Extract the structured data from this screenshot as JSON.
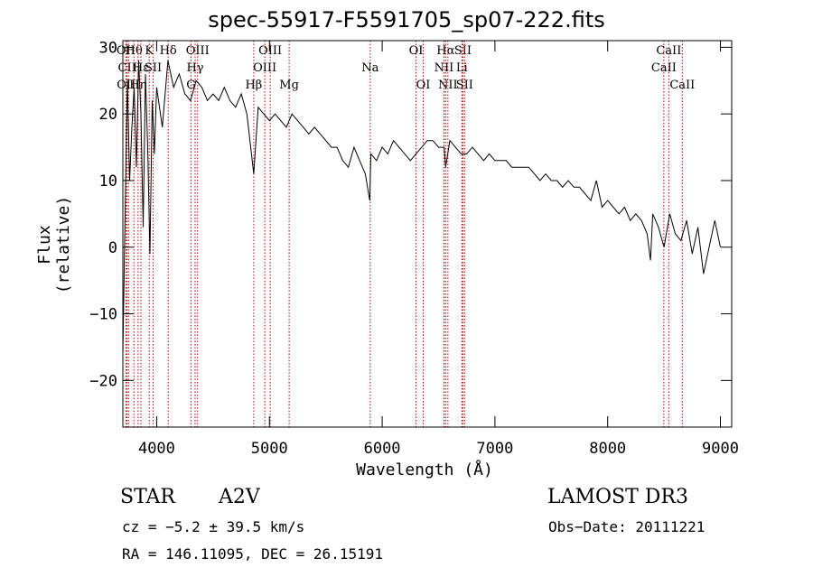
{
  "chart_data": {
    "type": "line",
    "title": "spec-55917-F5591705_sp07-222.fits",
    "xlabel": "Wavelength (Å)",
    "ylabel": "Flux (relative)",
    "xlim": [
      3700,
      9100
    ],
    "ylim": [
      -27,
      31
    ],
    "xticks": [
      4000,
      5000,
      6000,
      7000,
      8000,
      9000
    ],
    "yticks": [
      -20,
      -10,
      0,
      10,
      20,
      30
    ],
    "series": [
      {
        "name": "spectrum",
        "x": [
          3700,
          3720,
          3740,
          3760,
          3780,
          3800,
          3820,
          3840,
          3860,
          3880,
          3900,
          3920,
          3940,
          3960,
          3980,
          4000,
          4050,
          4100,
          4150,
          4200,
          4250,
          4300,
          4350,
          4400,
          4450,
          4500,
          4550,
          4600,
          4650,
          4700,
          4750,
          4800,
          4861,
          4900,
          4950,
          5000,
          5050,
          5100,
          5150,
          5200,
          5250,
          5300,
          5350,
          5400,
          5450,
          5500,
          5550,
          5600,
          5650,
          5700,
          5750,
          5800,
          5850,
          5890,
          5900,
          5950,
          6000,
          6050,
          6100,
          6150,
          6200,
          6250,
          6300,
          6350,
          6400,
          6450,
          6500,
          6550,
          6563,
          6600,
          6650,
          6700,
          6750,
          6800,
          6850,
          6900,
          6950,
          7000,
          7050,
          7100,
          7150,
          7200,
          7250,
          7300,
          7350,
          7400,
          7450,
          7500,
          7550,
          7600,
          7650,
          7700,
          7750,
          7800,
          7850,
          7900,
          7950,
          8000,
          8050,
          8100,
          8150,
          8200,
          8250,
          8300,
          8350,
          8380,
          8400,
          8450,
          8500,
          8550,
          8600,
          8650,
          8700,
          8750,
          8800,
          8850,
          8900,
          8950,
          9000
        ],
        "y": [
          -16,
          5,
          25,
          10,
          18,
          24,
          12,
          28,
          20,
          3,
          26,
          15,
          -1,
          22,
          14,
          24,
          18,
          28,
          24,
          26,
          23,
          22,
          25,
          24,
          22,
          23,
          22,
          24,
          22,
          21,
          23,
          20,
          11,
          21,
          20,
          19,
          20,
          19,
          18,
          20,
          19,
          18,
          17,
          18,
          17,
          16,
          15,
          15,
          13,
          12,
          15,
          13,
          11,
          7,
          14,
          13,
          15,
          14,
          16,
          15,
          14,
          13,
          14,
          15,
          16,
          16,
          15,
          15,
          12,
          16,
          15,
          14,
          14,
          15,
          14,
          13,
          14,
          13,
          13,
          13,
          12,
          12,
          12,
          12,
          11,
          10,
          11,
          10,
          10,
          9,
          10,
          9,
          9,
          8,
          7,
          10,
          6,
          7,
          6,
          5,
          6,
          4,
          5,
          4,
          2,
          -2,
          5,
          3,
          0,
          5,
          2,
          1,
          4,
          -1,
          3,
          -4,
          0,
          4,
          0
        ]
      }
    ],
    "lines": [
      {
        "wl": 3727,
        "label": "OII",
        "row": 0
      },
      {
        "wl": 3737,
        "label": "CII",
        "row": 1
      },
      {
        "wl": 3750,
        "label": "OIII",
        "row": 2
      },
      {
        "wl": 3798,
        "label": "Hθ",
        "row": 0
      },
      {
        "wl": 3835,
        "label": "Hη",
        "row": 2
      },
      {
        "wl": 3860,
        "label": "Hε",
        "row": 1
      },
      {
        "wl": 3934,
        "label": "K",
        "row": 0
      },
      {
        "wl": 3969,
        "label": "SII",
        "row": 1
      },
      {
        "wl": 4102,
        "label": "Hδ",
        "row": 0
      },
      {
        "wl": 4304,
        "label": "G",
        "row": 2
      },
      {
        "wl": 4341,
        "label": "Hγ",
        "row": 1
      },
      {
        "wl": 4363,
        "label": "OIII",
        "row": 0
      },
      {
        "wl": 4861,
        "label": "Hβ",
        "row": 2
      },
      {
        "wl": 4959,
        "label": "OIII",
        "row": 1
      },
      {
        "wl": 5007,
        "label": "OIII",
        "row": 0
      },
      {
        "wl": 5175,
        "label": "Mg",
        "row": 2
      },
      {
        "wl": 5894,
        "label": "Na",
        "row": 1
      },
      {
        "wl": 6300,
        "label": "OI",
        "row": 0
      },
      {
        "wl": 6364,
        "label": "OI",
        "row": 2
      },
      {
        "wl": 6548,
        "label": "NII",
        "row": 1
      },
      {
        "wl": 6563,
        "label": "Hα",
        "row": 0
      },
      {
        "wl": 6583,
        "label": "NII",
        "row": 2
      },
      {
        "wl": 6707,
        "label": "Li",
        "row": 1
      },
      {
        "wl": 6716,
        "label": "SII",
        "row": 0
      },
      {
        "wl": 6731,
        "label": "SII",
        "row": 2
      },
      {
        "wl": 8498,
        "label": "CaII",
        "row": 1
      },
      {
        "wl": 8542,
        "label": "CaII",
        "row": 0
      },
      {
        "wl": 8662,
        "label": "CaII",
        "row": 2
      }
    ]
  },
  "info": {
    "class": "STAR",
    "subclass": "A2V",
    "survey": "LAMOST DR3",
    "cz": "cz = −5.2 ± 39.5 km/s",
    "obsdate": "Obs−Date: 20111221",
    "radec": "RA = 146.11095, DEC =  26.15191"
  }
}
